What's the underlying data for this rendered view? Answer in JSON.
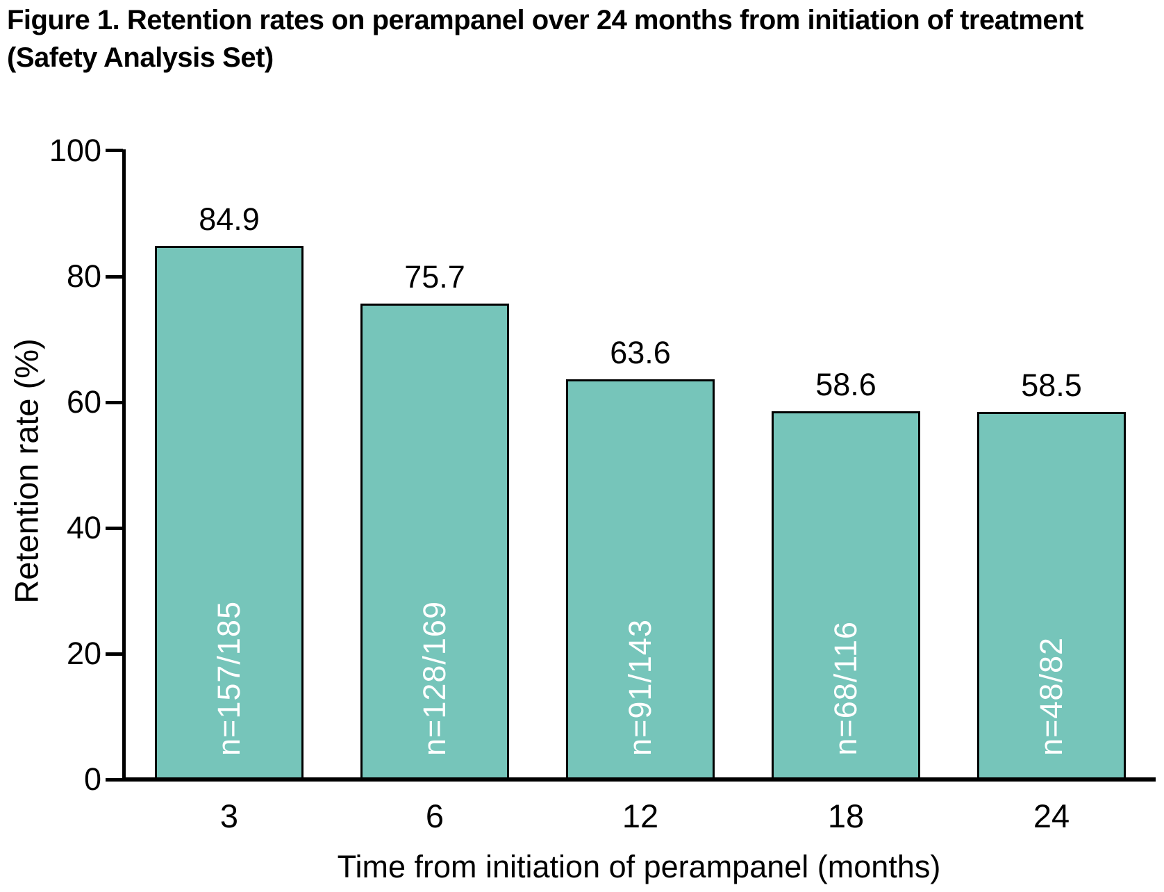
{
  "figure": {
    "title": "Figure 1. Retention rates on perampanel over 24 months from initiation of treatment (Safety Analysis Set)"
  },
  "chart_data": {
    "type": "bar",
    "title": "Figure 1. Retention rates on perampanel over 24 months from initiation of treatment (Safety Analysis Set)",
    "categories": [
      "3",
      "6",
      "12",
      "18",
      "24"
    ],
    "values": [
      84.9,
      75.7,
      63.6,
      58.6,
      58.5
    ],
    "value_labels": [
      "84.9",
      "75.7",
      "63.6",
      "58.6",
      "58.5"
    ],
    "bar_annotations": [
      "n=157/185",
      "n=128/169",
      "n=91/143",
      "n=68/116",
      "n=48/82"
    ],
    "xlabel": "Time from initiation of perampanel (months)",
    "ylabel": "Retention rate (%)",
    "ylim": [
      0,
      100
    ],
    "yticks": [
      0,
      20,
      40,
      60,
      80,
      100
    ],
    "grid": false,
    "legend_position": "none",
    "colors": {
      "bar_fill": "#76C5BA",
      "bar_border": "#000000",
      "axis": "#000000",
      "value_label": "#000000",
      "annotation_text": "#FFFFFF",
      "background": "#FFFFFF"
    }
  }
}
